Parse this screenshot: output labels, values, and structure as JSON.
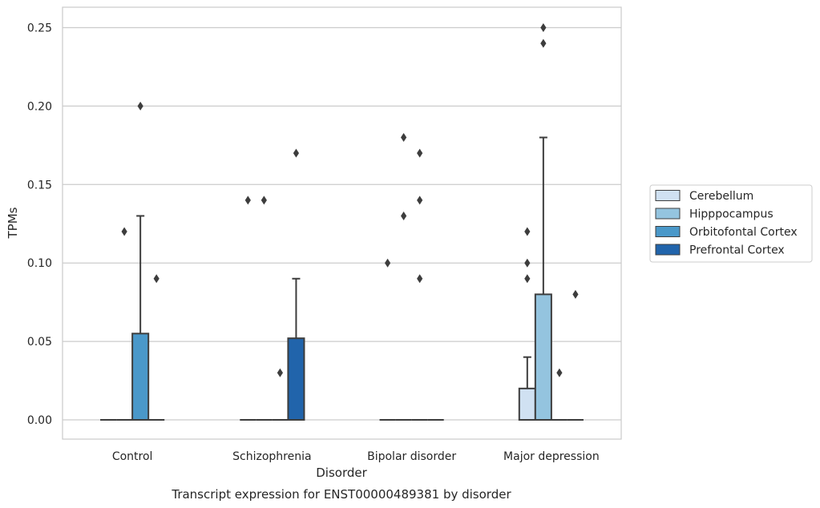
{
  "chart_data": {
    "type": "box",
    "title": "",
    "caption": "Transcript expression for ENST00000489381 by disorder",
    "xlabel": "Disorder",
    "ylabel": "TPMs",
    "ylim": [
      -0.012,
      0.263
    ],
    "yticks": [
      "0.00",
      "0.05",
      "0.10",
      "0.15",
      "0.20",
      "0.25"
    ],
    "grid": true,
    "legend_position": "right",
    "categories": [
      "Control",
      "Schizophrenia",
      "Bipolar disorder",
      "Major depression"
    ],
    "series": [
      {
        "name": "Cerebellum",
        "color": "#d0e1f2",
        "boxes": [
          {
            "q1": 0,
            "median": 0,
            "q3": 0,
            "whisker_low": 0,
            "whisker_high": 0,
            "outliers": []
          },
          {
            "q1": 0,
            "median": 0,
            "q3": 0,
            "whisker_low": 0,
            "whisker_high": 0,
            "outliers": [
              0.14
            ]
          },
          {
            "q1": 0,
            "median": 0,
            "q3": 0,
            "whisker_low": 0,
            "whisker_high": 0,
            "outliers": [
              0.1
            ]
          },
          {
            "q1": 0,
            "median": 0,
            "q3": 0.02,
            "whisker_low": 0,
            "whisker_high": 0.04,
            "outliers": [
              0.09,
              0.1,
              0.12
            ]
          }
        ]
      },
      {
        "name": "Hipppocampus",
        "color": "#94c4df",
        "boxes": [
          {
            "q1": 0,
            "median": 0,
            "q3": 0,
            "whisker_low": 0,
            "whisker_high": 0,
            "outliers": [
              0.12
            ]
          },
          {
            "q1": 0,
            "median": 0,
            "q3": 0,
            "whisker_low": 0,
            "whisker_high": 0,
            "outliers": [
              0.14
            ]
          },
          {
            "q1": 0,
            "median": 0,
            "q3": 0,
            "whisker_low": 0,
            "whisker_high": 0,
            "outliers": [
              0.13,
              0.18
            ]
          },
          {
            "q1": 0,
            "median": 0,
            "q3": 0.08,
            "whisker_low": 0,
            "whisker_high": 0.18,
            "outliers": [
              0.24,
              0.25
            ]
          }
        ]
      },
      {
        "name": "Orbitofontal Cortex",
        "color": "#4a98c9",
        "boxes": [
          {
            "q1": 0,
            "median": 0,
            "q3": 0.055,
            "whisker_low": 0,
            "whisker_high": 0.13,
            "outliers": [
              0.2
            ]
          },
          {
            "q1": 0,
            "median": 0,
            "q3": 0,
            "whisker_low": 0,
            "whisker_high": 0,
            "outliers": [
              0.03
            ]
          },
          {
            "q1": 0,
            "median": 0,
            "q3": 0,
            "whisker_low": 0,
            "whisker_high": 0,
            "outliers": [
              0.09,
              0.14,
              0.17
            ]
          },
          {
            "q1": 0,
            "median": 0,
            "q3": 0,
            "whisker_low": 0,
            "whisker_high": 0,
            "outliers": [
              0.03
            ]
          }
        ]
      },
      {
        "name": "Prefrontal Cortex",
        "color": "#2164ab",
        "boxes": [
          {
            "q1": 0,
            "median": 0,
            "q3": 0,
            "whisker_low": 0,
            "whisker_high": 0,
            "outliers": [
              0.09
            ]
          },
          {
            "q1": 0,
            "median": 0,
            "q3": 0.052,
            "whisker_low": 0,
            "whisker_high": 0.09,
            "outliers": [
              0.17
            ]
          },
          {
            "q1": 0,
            "median": 0,
            "q3": 0,
            "whisker_low": 0,
            "whisker_high": 0,
            "outliers": []
          },
          {
            "q1": 0,
            "median": 0,
            "q3": 0,
            "whisker_low": 0,
            "whisker_high": 0,
            "outliers": [
              0.08
            ]
          }
        ]
      }
    ]
  }
}
